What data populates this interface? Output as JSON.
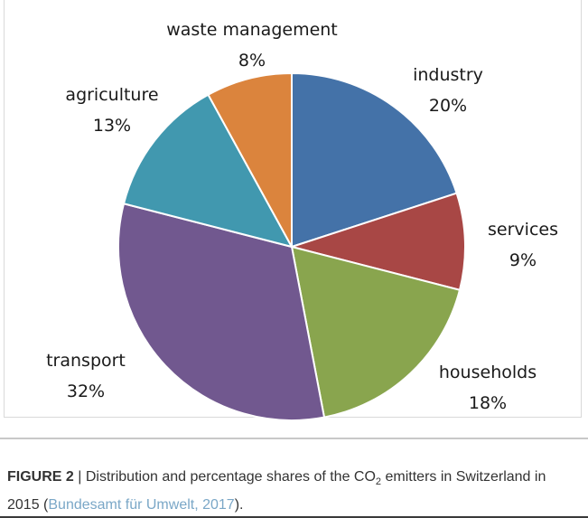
{
  "chart_data": {
    "type": "pie",
    "title": "",
    "slices": [
      {
        "name": "industry",
        "label": "20%",
        "value": 20,
        "color": "#4472A8"
      },
      {
        "name": "services",
        "label": "9%",
        "value": 9,
        "color": "#A84745"
      },
      {
        "name": "households",
        "label": "18%",
        "value": 18,
        "color": "#89A54E"
      },
      {
        "name": "transport",
        "label": "32%",
        "value": 32,
        "color": "#71588F"
      },
      {
        "name": "agriculture",
        "label": "13%",
        "value": 13,
        "color": "#4198AF"
      },
      {
        "name": "waste management",
        "label": "8%",
        "value": 8,
        "color": "#DB843D"
      }
    ]
  },
  "caption": {
    "figure_label": "FIGURE 2",
    "separator": " | ",
    "text_before": "Distribution and percentage shares of the CO",
    "subscript": "2",
    "text_after": " emitters in Switzerland in 2015 (",
    "citation": "Bundesamt für Umwelt, 2017",
    "text_end": ")."
  }
}
